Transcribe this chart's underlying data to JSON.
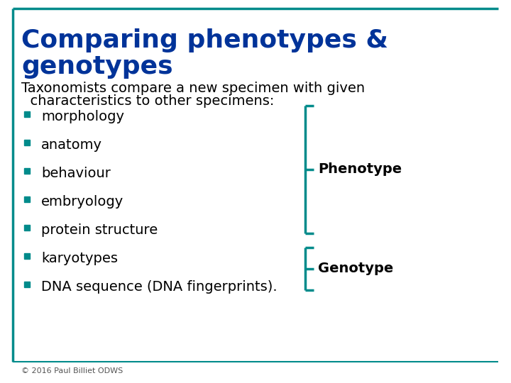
{
  "title_line1": "Comparing phenotypes &",
  "title_line2": "genotypes",
  "title_color": "#003399",
  "background_color": "#ffffff",
  "border_color": "#008B8B",
  "intro_text_line1": "Taxonomists compare a new specimen with given",
  "intro_text_line2": "  characteristics to other specimens:",
  "bullet_items": [
    "morphology",
    "anatomy",
    "behaviour",
    "embryology",
    "protein structure",
    "karyotypes",
    "DNA sequence (DNA fingerprints)."
  ],
  "bullet_color": "#008B8B",
  "bullet_text_color": "#000000",
  "phenotype_label": "Phenotype",
  "genotype_label": "Genotype",
  "label_color": "#000000",
  "label_fontsize": 14,
  "bracket_color": "#008B8B",
  "footer_text": "© 2016 Paul Billiet ODWS",
  "footer_color": "#555555",
  "title_fontsize": 26,
  "body_fontsize": 14,
  "intro_fontsize": 14
}
